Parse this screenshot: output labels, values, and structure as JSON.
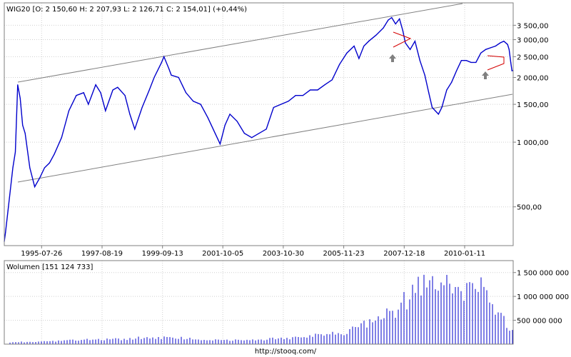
{
  "header": {
    "price_title": "WIG20 [O: 2 150,60  H: 2 207,93  L: 2 126,71  C: 2 154,01] (+0,44%)",
    "volume_title": "Wolumen [151 124 733]",
    "footer_url": "http://stooq.com/"
  },
  "colors": {
    "series": "#0000cc",
    "frame": "#7f7f7f",
    "grid": "#d0d0d0",
    "trend_channel": "#808080",
    "pattern": "#d40000",
    "arrow": "#808080"
  },
  "chart_data": [
    {
      "type": "line",
      "name": "price",
      "title": "WIG20 [O: 2 150,60  H: 2 207,93  L: 2 126,71  C: 2 154,01] (+0,44%)",
      "y_scale": "log",
      "ylim": [
        330,
        4450
      ],
      "y_ticks": [
        500,
        1000,
        1500,
        2000,
        2500,
        3000,
        3500
      ],
      "y_tick_labels": [
        "500,00",
        "1 000,00",
        "1 500,00",
        "2 000,00",
        "2 500,00",
        "3 000,00",
        "3 500,00"
      ],
      "x_range": [
        "1994-04-16",
        "2011-09-09"
      ],
      "x_ticks": [
        "1995-07-26",
        "1997-08-19",
        "1999-09-13",
        "2001-10-05",
        "2003-10-30",
        "2005-11-23",
        "2007-12-18",
        "2010-01-11"
      ],
      "grid": true,
      "x": [
        "1994-04-16",
        "1994-05-01",
        "1994-06-01",
        "1994-07-01",
        "1994-08-01",
        "1994-09-01",
        "1994-10-01",
        "1994-11-01",
        "1994-12-01",
        "1995-01-01",
        "1995-03-01",
        "1995-05-01",
        "1995-07-01",
        "1995-09-01",
        "1995-11-01",
        "1996-01-01",
        "1996-04-01",
        "1996-07-01",
        "1996-10-01",
        "1997-01-01",
        "1997-03-01",
        "1997-06-01",
        "1997-08-01",
        "1997-10-01",
        "1998-01-01",
        "1998-03-01",
        "1998-06-01",
        "1998-08-01",
        "1998-10-01",
        "1999-01-01",
        "1999-04-01",
        "1999-06-01",
        "1999-09-01",
        "1999-10-01",
        "1999-12-01",
        "2000-01-01",
        "2000-04-01",
        "2000-07-01",
        "2000-10-01",
        "2001-01-01",
        "2001-04-01",
        "2001-07-01",
        "2001-09-01",
        "2001-11-01",
        "2002-01-01",
        "2002-04-01",
        "2002-07-01",
        "2002-10-01",
        "2003-01-01",
        "2003-04-01",
        "2003-07-01",
        "2003-10-01",
        "2004-01-01",
        "2004-04-01",
        "2004-07-01",
        "2004-10-01",
        "2005-01-01",
        "2005-04-01",
        "2005-07-01",
        "2005-10-01",
        "2006-01-01",
        "2006-04-01",
        "2006-06-01",
        "2006-08-01",
        "2006-10-01",
        "2007-01-01",
        "2007-04-01",
        "2007-06-01",
        "2007-07-15",
        "2007-09-01",
        "2007-10-20",
        "2007-12-01",
        "2008-01-01",
        "2008-03-01",
        "2008-05-01",
        "2008-07-01",
        "2008-09-01",
        "2008-10-20",
        "2008-12-01",
        "2009-02-18",
        "2009-04-01",
        "2009-06-01",
        "2009-08-01",
        "2009-10-01",
        "2009-12-01",
        "2010-02-01",
        "2010-04-01",
        "2010-06-01",
        "2010-08-01",
        "2010-10-01",
        "2010-12-01",
        "2011-02-01",
        "2011-04-01",
        "2011-05-15",
        "2011-07-01",
        "2011-07-20",
        "2011-08-10",
        "2011-08-25",
        "2011-09-09"
      ],
      "y": [
        345,
        380,
        480,
        600,
        760,
        900,
        1850,
        1600,
        1200,
        1100,
        760,
        620,
        680,
        760,
        800,
        880,
        1050,
        1400,
        1650,
        1700,
        1500,
        1850,
        1700,
        1400,
        1750,
        1800,
        1650,
        1350,
        1150,
        1450,
        1750,
        2000,
        2350,
        2500,
        2200,
        2050,
        2000,
        1700,
        1550,
        1500,
        1300,
        1100,
        980,
        1200,
        1350,
        1250,
        1100,
        1050,
        1100,
        1150,
        1450,
        1500,
        1550,
        1650,
        1650,
        1750,
        1750,
        1850,
        1950,
        2300,
        2600,
        2800,
        2450,
        2800,
        2950,
        3150,
        3400,
        3700,
        3800,
        3550,
        3750,
        3300,
        2900,
        2700,
        2950,
        2400,
        2050,
        1700,
        1450,
        1350,
        1450,
        1750,
        1900,
        2150,
        2400,
        2400,
        2350,
        2350,
        2600,
        2700,
        2750,
        2800,
        2900,
        2950,
        2850,
        2700,
        2350,
        2150,
        2154
      ]
    },
    {
      "type": "bar",
      "name": "volume",
      "title": "Wolumen [151 124 733]",
      "ylim": [
        0,
        1750000000
      ],
      "y_ticks": [
        500000000,
        1000000000,
        1500000000
      ],
      "y_tick_labels": [
        "500 000 000",
        "1 000 000 000",
        "1 500 000 000"
      ],
      "grid": true,
      "x": [
        "1994",
        "1995",
        "1996",
        "1997",
        "1998",
        "1999",
        "2000",
        "2001",
        "2002",
        "2003",
        "2004",
        "2005",
        "2006",
        "2006-07",
        "2007",
        "2007-07",
        "2008",
        "2008-07",
        "2009",
        "2009-07",
        "2010",
        "2010-07",
        "2011",
        "2011-09"
      ],
      "values": [
        30000000,
        45000000,
        60000000,
        90000000,
        100000000,
        130000000,
        140000000,
        90000000,
        80000000,
        95000000,
        130000000,
        180000000,
        250000000,
        380000000,
        520000000,
        650000000,
        900000000,
        1200000000,
        1350000000,
        1150000000,
        1000000000,
        1250000000,
        800000000,
        250000000
      ]
    }
  ]
}
